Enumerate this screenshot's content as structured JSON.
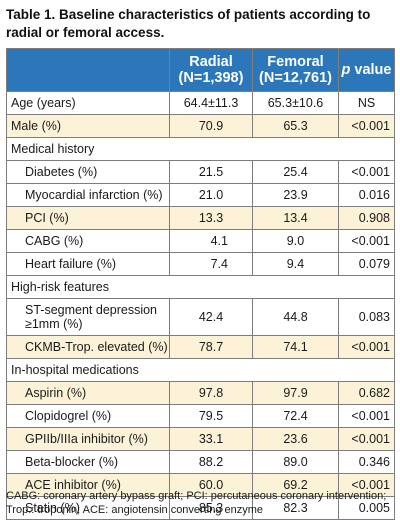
{
  "title": "Table 1. Baseline characteristics of patients according to radial or femoral access.",
  "header": {
    "radial": "Radial",
    "radial_n": "(N=1,398)",
    "femoral": "Femoral",
    "femoral_n": "(N=12,761)",
    "p_italic": "p",
    "p_rest": " value"
  },
  "rows": [
    {
      "label": "Age (years)",
      "radial": "64.4±11.3",
      "femoral": "65.3±10.6",
      "p": "NS"
    },
    {
      "label": "Male (%)",
      "radial": "70.9",
      "femoral": "65.3",
      "p": "<0.001"
    },
    {
      "section": "Medical history"
    },
    {
      "label": "Diabetes (%)",
      "radial": "21.5",
      "femoral": "25.4",
      "p": "<0.001"
    },
    {
      "label": "Myocardial infarction (%)",
      "radial": "21.0",
      "femoral": "23.9",
      "p": "0.016"
    },
    {
      "label": "PCI (%)",
      "radial": "13.3",
      "femoral": "13.4",
      "p": "0.908"
    },
    {
      "label": "CABG (%)",
      "radial": "4.1",
      "femoral": "9.0",
      "p": "<0.001"
    },
    {
      "label": "Heart failure (%)",
      "radial": "7.4",
      "femoral": "9.4",
      "p": "0.079"
    },
    {
      "section": "High-risk features"
    },
    {
      "label_line1": "ST-segment depression",
      "label_line2": "≥1mm (%)",
      "radial": "42.4",
      "femoral": "44.8",
      "p": "0.083"
    },
    {
      "label": "CKMB-Trop. elevated (%)",
      "radial": "78.7",
      "femoral": "74.1",
      "p": "<0.001"
    },
    {
      "section": "In-hospital medications"
    },
    {
      "label": "Aspirin (%)",
      "radial": "97.8",
      "femoral": "97.9",
      "p": "0.682"
    },
    {
      "label": "Clopidogrel (%)",
      "radial": "79.5",
      "femoral": "72.4",
      "p": "<0.001"
    },
    {
      "label": "GPIIb/IIIa inhibitor (%)",
      "radial": "33.1",
      "femoral": "23.6",
      "p": "<0.001"
    },
    {
      "label": "Beta-blocker (%)",
      "radial": "88.2",
      "femoral": "89.0",
      "p": "0.346"
    },
    {
      "label": "ACE inhibitor (%)",
      "radial": "60.0",
      "femoral": "69.2",
      "p": "<0.001"
    },
    {
      "label": "Statin (%)",
      "radial": "85.3",
      "femoral": "82.3",
      "p": "0.005"
    }
  ],
  "footnote": "CABG: coronary artery bypass graft; PCI: percutaneous coronary intervention; Trop.: troponin; ACE: angiotensin converting enzyme",
  "colors": {
    "header_bg": "#2b77b9",
    "row_shade": "#fbf2d7",
    "border": "#7d7d7d"
  }
}
